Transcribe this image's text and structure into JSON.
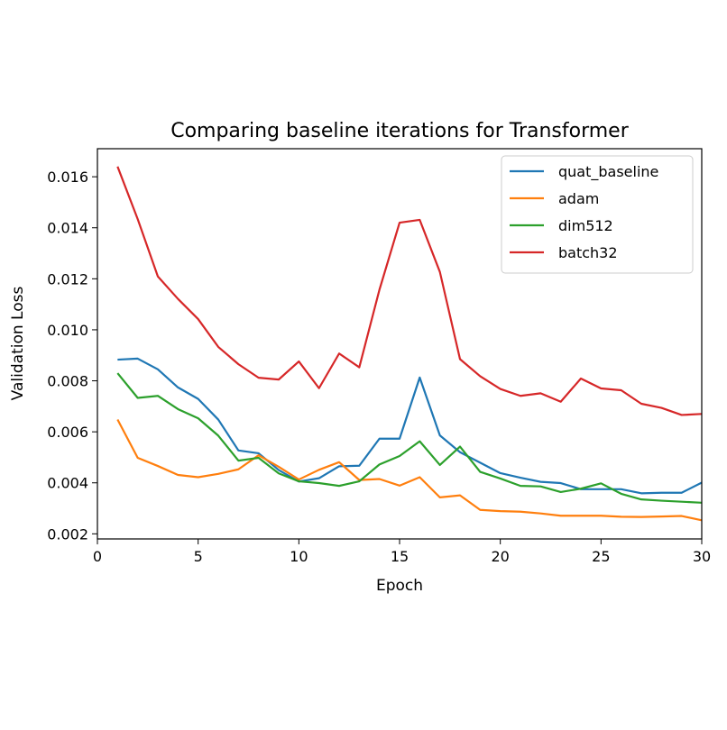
{
  "chart_data": {
    "type": "line",
    "title": "Comparing baseline iterations for Transformer",
    "xlabel": "Epoch",
    "ylabel": "Validation Loss",
    "xlim": [
      0,
      30
    ],
    "ylim": [
      0.0018,
      0.0171
    ],
    "xticks": [
      0,
      5,
      10,
      15,
      20,
      25,
      30
    ],
    "xtick_labels": [
      "0",
      "5",
      "10",
      "15",
      "20",
      "25",
      "30"
    ],
    "yticks": [
      0.002,
      0.004,
      0.006,
      0.008,
      0.01,
      0.012,
      0.014,
      0.016
    ],
    "ytick_labels": [
      "0.002",
      "0.004",
      "0.006",
      "0.008",
      "0.010",
      "0.012",
      "0.014",
      "0.016"
    ],
    "grid": false,
    "legend_position": "top-right",
    "x": [
      1,
      2,
      3,
      4,
      5,
      6,
      7,
      8,
      9,
      10,
      11,
      12,
      13,
      14,
      15,
      16,
      17,
      18,
      19,
      20,
      21,
      22,
      23,
      24,
      25,
      26,
      27,
      28,
      29,
      30
    ],
    "series": [
      {
        "name": "quat_baseline",
        "color": "#1f77b4",
        "values": [
          0.00883,
          0.00887,
          0.00845,
          0.00774,
          0.00729,
          0.00648,
          0.00527,
          0.00516,
          0.0045,
          0.00405,
          0.00418,
          0.00465,
          0.00467,
          0.00573,
          0.00573,
          0.00813,
          0.00586,
          0.0052,
          0.00479,
          0.00438,
          0.0042,
          0.00404,
          0.00399,
          0.00375,
          0.00375,
          0.00375,
          0.00359,
          0.00361,
          0.00361,
          0.00401
        ]
      },
      {
        "name": "adam",
        "color": "#ff7f0e",
        "values": [
          0.00648,
          0.00498,
          0.00466,
          0.00431,
          0.00422,
          0.00435,
          0.00453,
          0.00508,
          0.00463,
          0.00413,
          0.00451,
          0.00481,
          0.00411,
          0.00415,
          0.00389,
          0.00422,
          0.00343,
          0.00351,
          0.00294,
          0.00289,
          0.00287,
          0.0028,
          0.00271,
          0.00271,
          0.00271,
          0.00267,
          0.00266,
          0.00268,
          0.0027,
          0.00253
        ]
      },
      {
        "name": "dim512",
        "color": "#2ca02c",
        "values": [
          0.0083,
          0.00733,
          0.00741,
          0.00689,
          0.00653,
          0.00585,
          0.00487,
          0.00498,
          0.00437,
          0.00406,
          0.00399,
          0.00388,
          0.00406,
          0.00472,
          0.00505,
          0.00563,
          0.0047,
          0.00542,
          0.00443,
          0.00417,
          0.00388,
          0.00386,
          0.00364,
          0.00377,
          0.00398,
          0.00357,
          0.00335,
          0.0033,
          0.00326,
          0.00322
        ]
      },
      {
        "name": "batch32",
        "color": "#d62728",
        "values": [
          0.0164,
          0.01434,
          0.01209,
          0.01121,
          0.01042,
          0.00933,
          0.00865,
          0.00812,
          0.00805,
          0.00876,
          0.00771,
          0.00907,
          0.00853,
          0.01157,
          0.0142,
          0.01431,
          0.01227,
          0.00885,
          0.00818,
          0.00768,
          0.00741,
          0.00751,
          0.00718,
          0.00809,
          0.0077,
          0.00763,
          0.0071,
          0.00694,
          0.00666,
          0.0067
        ]
      }
    ]
  }
}
